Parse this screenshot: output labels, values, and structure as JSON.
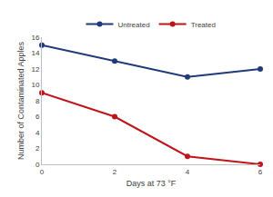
{
  "chart_data": {
    "type": "line",
    "x_label": "Days at 73 °F",
    "y_label": "Number of Contaminated Apples",
    "x": [
      0,
      2,
      4,
      6
    ],
    "series": [
      {
        "name": "Untreated",
        "color": "#1f3a7a",
        "values": [
          15,
          13,
          11,
          12
        ],
        "marker": "circle",
        "line_style": "solid"
      },
      {
        "name": "Treated",
        "color": "#c0141b",
        "values": [
          9,
          6,
          1,
          0
        ],
        "marker": "circle",
        "line_style": "solid"
      }
    ],
    "xlim": [
      0,
      6
    ],
    "xticks": [
      0,
      2,
      4,
      6
    ],
    "ylim": [
      0,
      16
    ],
    "yticks": [
      0,
      2,
      4,
      6,
      8,
      10,
      12,
      14,
      16
    ],
    "grid": false,
    "legend": "top"
  }
}
